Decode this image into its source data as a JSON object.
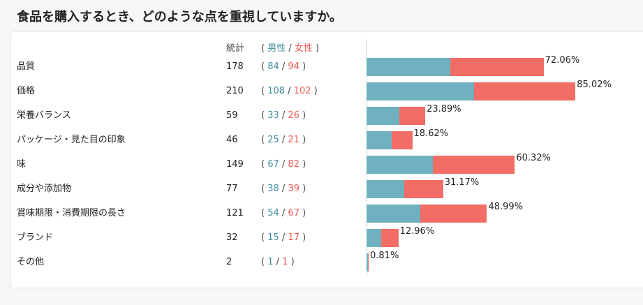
{
  "page_title": "食品を購入するとき、どのような点を重視していますか。",
  "header": {
    "total_label": "統計",
    "paren_open": "(",
    "paren_close": ")",
    "male_label": "男性",
    "slash": "/",
    "female_label": "女性"
  },
  "colors": {
    "male": "#6fb1c0",
    "female": "#f16d66",
    "male_text": "#3f8d9f",
    "female_text": "#ee5a4f"
  },
  "chart_data": {
    "type": "bar",
    "orientation": "horizontal",
    "stacked": true,
    "xlim": [
      0,
      100
    ],
    "categories": [
      "品質",
      "価格",
      "栄養バランス",
      "パッケージ・見た目の印象",
      "味",
      "成分や添加物",
      "賞味期限・消費期限の長さ",
      "ブランド",
      "その他"
    ],
    "totals": [
      178,
      210,
      59,
      46,
      149,
      77,
      121,
      32,
      2
    ],
    "male": [
      84,
      108,
      33,
      25,
      67,
      38,
      54,
      15,
      1
    ],
    "female": [
      94,
      102,
      26,
      21,
      82,
      39,
      67,
      17,
      1
    ],
    "percent_labels": [
      "72.06%",
      "85.02%",
      "23.89%",
      "18.62%",
      "60.32%",
      "31.17%",
      "48.99%",
      "12.96%",
      "0.81%"
    ],
    "percent_values": [
      72.06,
      85.02,
      23.89,
      18.62,
      60.32,
      31.17,
      48.99,
      12.96,
      0.81
    ]
  }
}
